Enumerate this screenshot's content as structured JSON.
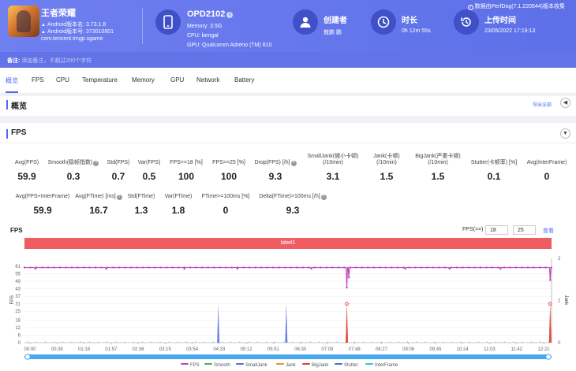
{
  "app": {
    "name": "王者荣耀",
    "android_version": "Android版本名: 3.73.1.8",
    "android_code": "Android版本号: 373010801",
    "package": "com.tencent.tmgp.sgame"
  },
  "device": {
    "name": "OPD2102",
    "memory": "Memory: 3.5G",
    "cpu": "CPU: bengal",
    "gpu": "GPU: Qualcomm Adreno (TM) 610"
  },
  "creator": {
    "label": "创建者",
    "value": "敖鹏 鹏"
  },
  "duration": {
    "label": "时长",
    "value": "0h 12m 55s"
  },
  "upload": {
    "label": "上传时间",
    "value": "23/05/2022 17:19:13"
  },
  "perfdog_version": "数据由PerfDog(7.1.220544)版本收集",
  "note": {
    "label": "备注:",
    "placeholder": "添加备注，不超过200个字符"
  },
  "tabs": [
    "概览",
    "FPS",
    "CPU",
    "Temperature",
    "Memory",
    "GPU",
    "Network",
    "Battery"
  ],
  "overview": {
    "title": "概览",
    "export_label": "导出全部"
  },
  "fps_section": {
    "title": "FPS"
  },
  "metrics_row1": [
    {
      "label": "Avg(FPS)",
      "value": "59.9"
    },
    {
      "label": "Smooth(稳帧指数)",
      "value": "0.3",
      "help": true
    },
    {
      "label": "Std(FPS)",
      "value": "0.7"
    },
    {
      "label": "Var(FPS)",
      "value": "0.5"
    },
    {
      "label": "FPS>=18 [%]",
      "value": "100"
    },
    {
      "label": "FPS>=25 [%]",
      "value": "100"
    },
    {
      "label": "Drop(FPS) [/h]",
      "value": "9.3",
      "help": true
    },
    {
      "label": "SmallJank(微小卡顿)",
      "label2": "(/10min)",
      "value": "3.1"
    },
    {
      "label": "Jank(卡顿)",
      "label2": "(/10min)",
      "value": "1.5"
    },
    {
      "label": "BigJank(严重卡顿)",
      "label2": "(/10min)",
      "value": "1.5"
    },
    {
      "label": "Stutter(卡顿率) [%]",
      "value": "0.1"
    },
    {
      "label": "Avg(InterFrame)",
      "value": "0"
    }
  ],
  "metrics_row2": [
    {
      "label": "Avg(FPS+InterFrame)",
      "value": "59.9"
    },
    {
      "label": "Avg(FTime) [ms]",
      "value": "16.7",
      "help": true
    },
    {
      "label": "Std(FTime)",
      "value": "1.3"
    },
    {
      "label": "Var(FTime)",
      "value": "1.8"
    },
    {
      "label": "FTime>=100ms [%]",
      "value": "0"
    },
    {
      "label": "Delta(FTime)>100ms [/h]",
      "value": "9.3",
      "help": true
    }
  ],
  "chart_controls": {
    "title": "FPS",
    "fps_filter_label": "FPS(>=)",
    "fps_min": "18",
    "fps_max": "25",
    "query_label": "查看",
    "label_band": "label1"
  },
  "chart_data": {
    "type": "line",
    "xlabel": "",
    "ylabel": "FPS",
    "y2label": "Jank",
    "ylim": [
      0,
      61
    ],
    "y2lim": [
      0,
      2
    ],
    "yticks": [
      0,
      6,
      12,
      18,
      25,
      31,
      37,
      43,
      49,
      55,
      61
    ],
    "y2ticks": [
      0,
      1,
      2
    ],
    "xticks": [
      "00:00",
      "00:39",
      "01:18",
      "01:57",
      "02:36",
      "03:15",
      "03:54",
      "04:33",
      "05:12",
      "05:51",
      "06:30",
      "07:09",
      "07:48",
      "08:27",
      "09:06",
      "09:45",
      "10:24",
      "11:03",
      "11:42",
      "12:21"
    ],
    "duration_s": 775,
    "series": [
      {
        "name": "FPS",
        "color": "#c13fbf",
        "baseline": 60,
        "dips": [
          [
            16,
            59
          ],
          [
            120,
            59
          ],
          [
            235,
            59
          ],
          [
            313,
            59
          ],
          [
            422,
            59
          ],
          [
            474,
            44
          ],
          [
            477,
            52
          ],
          [
            560,
            59
          ],
          [
            625,
            59
          ],
          [
            700,
            59
          ],
          [
            773,
            50
          ]
        ]
      },
      {
        "name": "Smooth",
        "color": "#4caf50",
        "points": []
      },
      {
        "name": "SmallJank",
        "color": "#5468e0",
        "spikes": [
          [
            285,
            31
          ],
          [
            385,
            31
          ]
        ]
      },
      {
        "name": "Jank",
        "color": "#f28c28",
        "spikes": [
          [
            474,
            31
          ],
          [
            773,
            31
          ]
        ]
      },
      {
        "name": "BigJank",
        "color": "#e03e3e",
        "spikes": [
          [
            474,
            31
          ],
          [
            773,
            31
          ]
        ]
      },
      {
        "name": "Stutter",
        "color": "#3a6fd8",
        "points": []
      },
      {
        "name": "InterFrame",
        "color": "#3ec1d3",
        "points": []
      }
    ],
    "grid": true,
    "legend": "bottom"
  }
}
